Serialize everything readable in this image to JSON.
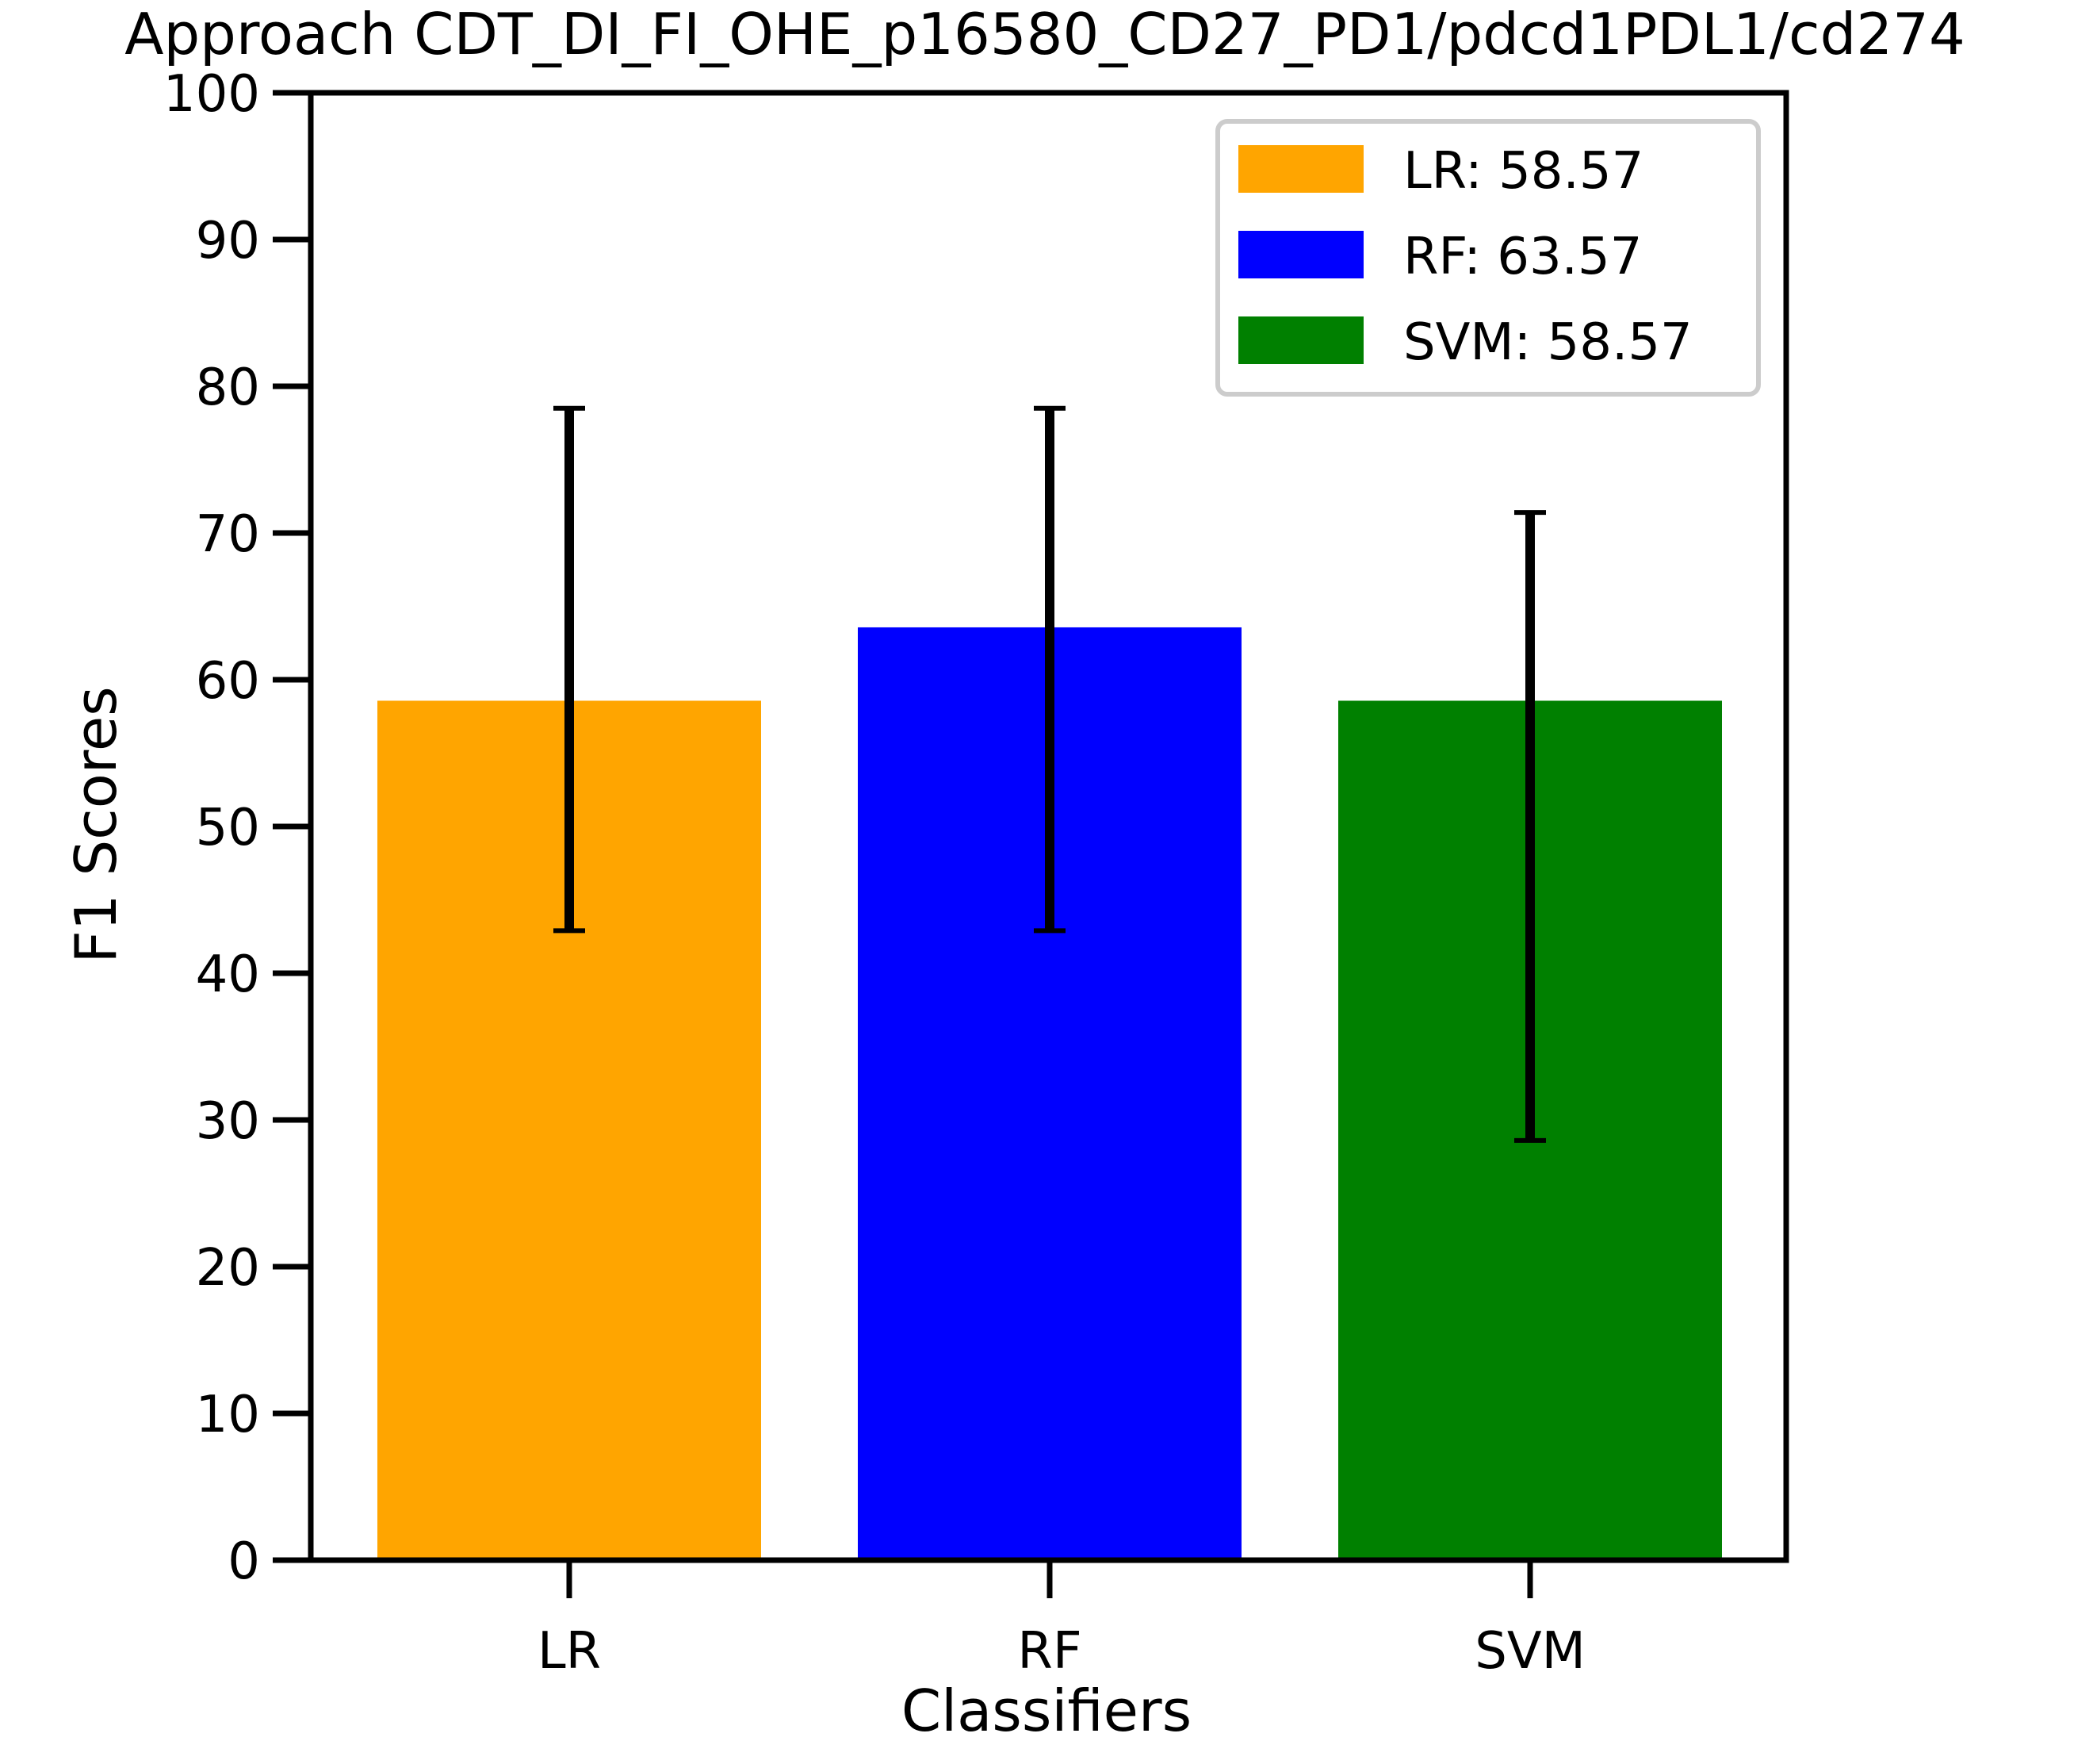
{
  "chart_data": {
    "type": "bar",
    "title": "Approach CDT_DI_FI_OHE_p16580_CD27_PD1/pdcd1PDL1/cd274",
    "xlabel": "Classifiers",
    "ylabel": "F1 Scores",
    "categories": [
      "LR",
      "RF",
      "SVM"
    ],
    "values": [
      58.57,
      63.57,
      58.57
    ],
    "errors": [
      {
        "low": 42.9,
        "high": 78.5
      },
      {
        "low": 42.9,
        "high": 78.5
      },
      {
        "low": 28.6,
        "high": 71.4
      }
    ],
    "colors": [
      "#ffa500",
      "#0000ff",
      "#008000"
    ],
    "ylim": [
      0,
      100
    ],
    "yticks": [
      0,
      10,
      20,
      30,
      40,
      50,
      60,
      70,
      80,
      90,
      100
    ],
    "grid": false,
    "legend": {
      "position": "top-right",
      "entries": [
        "LR: 58.57",
        "RF: 63.57",
        "SVM: 58.57"
      ]
    }
  }
}
